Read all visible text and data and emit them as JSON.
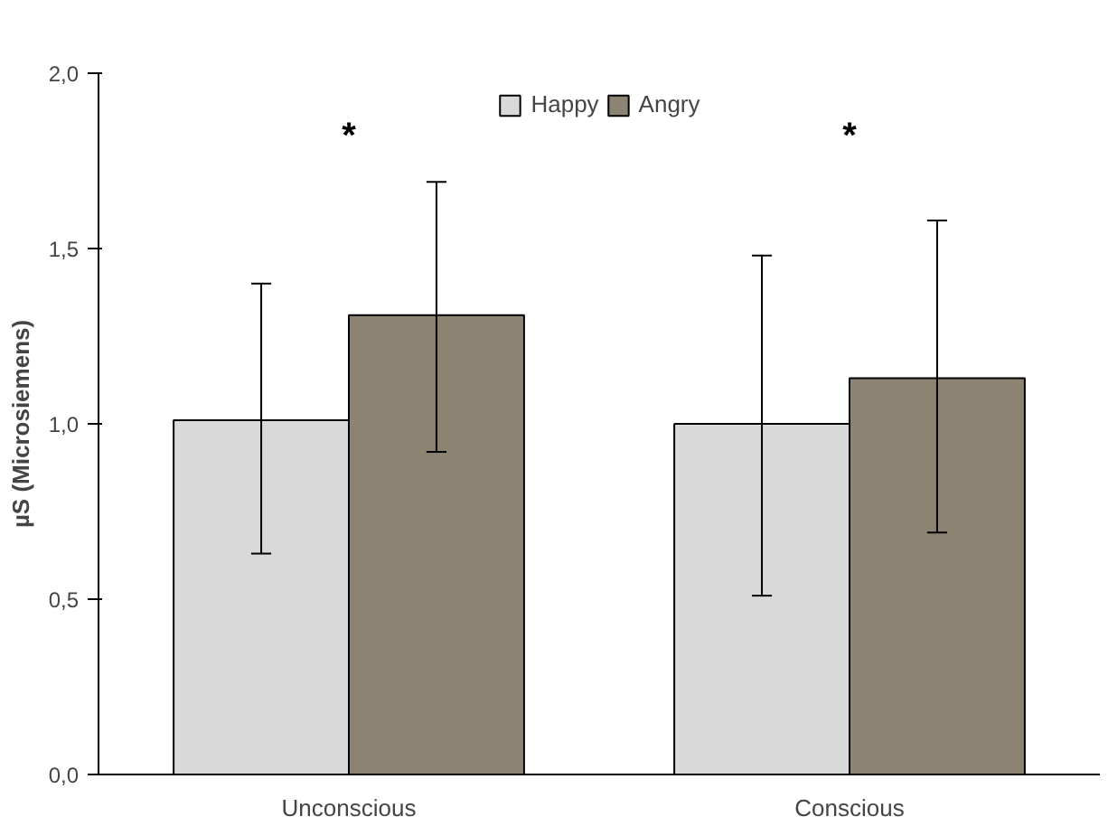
{
  "chart_data": {
    "type": "bar",
    "ylabel": "µS (Microsiemens)",
    "categories": [
      "Unconscious",
      "Conscious"
    ],
    "series": [
      {
        "name": "Happy",
        "color": "#d9d9d9",
        "values": [
          1.01,
          1.0
        ],
        "errors": [
          [
            0.63,
            1.4
          ],
          [
            0.51,
            1.48
          ]
        ]
      },
      {
        "name": "Angry",
        "color": "#8c8373",
        "values": [
          1.31,
          1.13
        ],
        "errors": [
          [
            0.92,
            1.69
          ],
          [
            0.69,
            1.58
          ]
        ]
      }
    ],
    "ylim": [
      0,
      2
    ],
    "yticks": [
      {
        "value": 0,
        "label": "0,0"
      },
      {
        "value": 0.5,
        "label": "0,5"
      },
      {
        "value": 1,
        "label": "1,0"
      },
      {
        "value": 1.5,
        "label": "1,5"
      },
      {
        "value": 2,
        "label": "2,0"
      }
    ],
    "annotations": [
      "*",
      "*"
    ],
    "grid": false,
    "legend": "top"
  }
}
